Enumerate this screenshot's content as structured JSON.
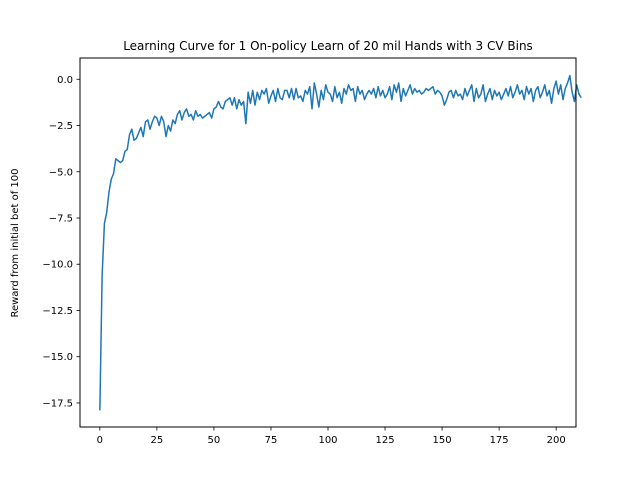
{
  "chart_data": {
    "type": "line",
    "title": "Learning Curve for 1 On-policy Learn of 20 mil Hands with 3 CV Bins",
    "xlabel": "",
    "ylabel": "Reward from initial bet of 100",
    "xlim": [
      -8.7,
      208.7
    ],
    "ylim": [
      -18.8,
      1.15
    ],
    "x_ticks": [
      0,
      25,
      50,
      75,
      100,
      125,
      150,
      175,
      200
    ],
    "y_ticks": [
      0.0,
      -2.5,
      -5.0,
      -7.5,
      -10.0,
      -12.5,
      -15.0,
      -17.5
    ],
    "x_tick_labels": [
      "0",
      "25",
      "50",
      "75",
      "100",
      "125",
      "150",
      "175",
      "200"
    ],
    "y_tick_labels": [
      "0.0",
      "−2.5",
      "−5.0",
      "−7.5",
      "−10.0",
      "−12.5",
      "−15.0",
      "−17.5"
    ],
    "line_color": "#1f77b4",
    "grid": false,
    "legend": "none",
    "series": [
      {
        "x_start": 0,
        "x_step": 1,
        "values": [
          -17.9,
          -10.6,
          -7.8,
          -7.2,
          -6.1,
          -5.4,
          -5.1,
          -4.3,
          -4.4,
          -4.5,
          -4.4,
          -3.9,
          -3.8,
          -3.0,
          -2.7,
          -3.3,
          -3.2,
          -2.9,
          -2.6,
          -3.1,
          -2.3,
          -2.2,
          -2.7,
          -2.3,
          -2.0,
          -2.1,
          -2.5,
          -2.0,
          -2.3,
          -3.1,
          -2.5,
          -2.8,
          -2.2,
          -2.4,
          -1.9,
          -1.7,
          -2.2,
          -1.8,
          -1.6,
          -2.0,
          -1.9,
          -2.2,
          -1.7,
          -2.0,
          -1.9,
          -2.1,
          -2.0,
          -1.9,
          -1.8,
          -2.1,
          -1.6,
          -1.5,
          -1.2,
          -1.5,
          -1.6,
          -1.2,
          -1.1,
          -1.0,
          -1.4,
          -1.0,
          -1.6,
          -1.1,
          -1.4,
          -1.2,
          -2.4,
          -0.7,
          -1.3,
          -0.6,
          -1.4,
          -0.7,
          -1.1,
          -0.6,
          -0.8,
          -0.5,
          -1.3,
          -0.9,
          -0.6,
          -1.2,
          -0.5,
          -1.0,
          -1.1,
          -0.6,
          -0.6,
          -1.0,
          -0.5,
          -1.1,
          -0.5,
          -1.0,
          -0.9,
          -1.2,
          -0.6,
          -0.8,
          -0.4,
          -1.6,
          -0.2,
          -0.8,
          -1.5,
          -0.6,
          -1.1,
          -0.3,
          -0.7,
          -0.8,
          -1.2,
          -0.4,
          -1.0,
          -0.7,
          -1.3,
          -0.5,
          -0.8,
          -0.3,
          -0.6,
          -0.5,
          -1.2,
          -0.4,
          -0.8,
          -0.6,
          -1.1,
          -0.8,
          -0.6,
          -0.8,
          -0.5,
          -1.0,
          -0.4,
          -0.9,
          -0.6,
          -1.0,
          -0.8,
          -0.4,
          -1.1,
          -0.3,
          -0.7,
          -0.2,
          -1.2,
          -0.5,
          -0.9,
          -0.6,
          -0.3,
          -0.8,
          -0.5,
          -0.7,
          -0.6,
          -0.8,
          -0.7,
          -0.5,
          -0.6,
          -0.5,
          -0.4,
          -0.8,
          -0.6,
          -0.7,
          -0.9,
          -1.4,
          -1.1,
          -0.7,
          -0.6,
          -1.0,
          -0.6,
          -0.9,
          -0.8,
          -1.1,
          -0.5,
          -0.9,
          -0.6,
          -0.3,
          -1.2,
          -0.5,
          -1.0,
          -0.8,
          -0.3,
          -1.2,
          -0.8,
          -0.5,
          -1.1,
          -0.6,
          -0.9,
          -0.7,
          -1.1,
          -0.8,
          -0.5,
          -0.9,
          -0.4,
          -1.0,
          -0.7,
          -0.3,
          -0.8,
          -0.6,
          -1.1,
          -0.4,
          -0.8,
          -0.5,
          -1.2,
          -0.6,
          -0.4,
          -1.0,
          -0.7,
          -0.3,
          -0.9,
          -0.6,
          -1.3,
          -0.5,
          -0.1,
          -0.8,
          -0.3,
          -1.1,
          -0.5,
          -0.2,
          0.2,
          -0.7,
          -1.2,
          -0.3,
          -0.8,
          -1.0
        ]
      }
    ]
  }
}
